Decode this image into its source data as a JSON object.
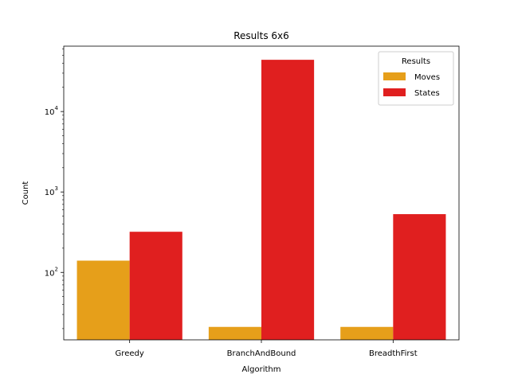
{
  "chart_data": {
    "type": "bar",
    "title": "Results 6x6",
    "xlabel": "Algorithm",
    "ylabel": "Count",
    "yscale": "log",
    "ylim": [
      14.5,
      65000
    ],
    "grid": false,
    "legend_position": "top-right",
    "legend_title": "Results",
    "categories": [
      "Greedy",
      "BranchAndBound",
      "BreadthFirst"
    ],
    "series": [
      {
        "name": "Moves",
        "color": "#e69f1a",
        "values": [
          140,
          21,
          21
        ]
      },
      {
        "name": "States",
        "color": "#e01f1f",
        "values": [
          320,
          44000,
          530
        ]
      }
    ],
    "y_ticks": [
      {
        "value": 100,
        "base": "10",
        "exp": "2"
      },
      {
        "value": 1000,
        "base": "10",
        "exp": "3"
      },
      {
        "value": 10000,
        "base": "10",
        "exp": "4"
      }
    ]
  }
}
